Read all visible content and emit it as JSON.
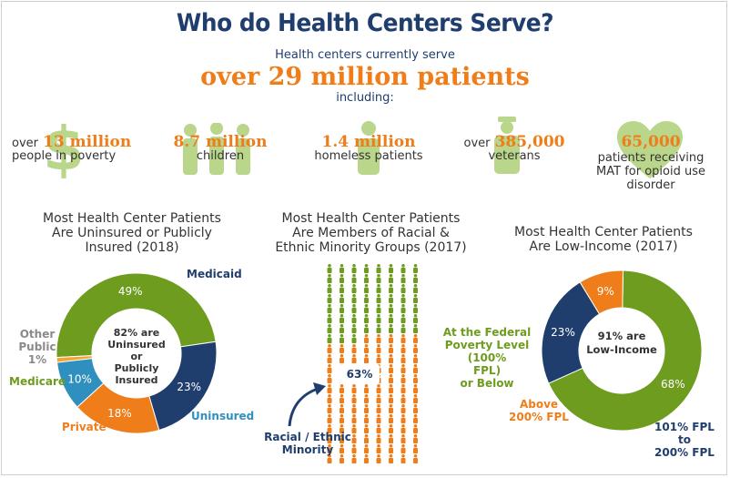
{
  "header": {
    "title": "Who do Health Centers Serve?",
    "line1": "Health centers currently serve",
    "headline": "over 29 million patients",
    "line2": "including:"
  },
  "stats": {
    "poverty": {
      "prefix": "over",
      "number": "13 million",
      "text": "people in poverty",
      "icon": "dollar-icon"
    },
    "children": {
      "number": "8.7 million",
      "text": "children",
      "icon": "children-icon"
    },
    "homeless": {
      "number": "1.4 million",
      "text": "homeless patients",
      "icon": "person-icon"
    },
    "veterans": {
      "prefix": "over",
      "number": "385,000",
      "text": "veterans",
      "icon": "soldier-icon"
    },
    "mat": {
      "number": "65,000",
      "text1": "patients receiving",
      "text2": "MAT for opioid use",
      "text3": "disorder",
      "icon": "heart-icon"
    }
  },
  "insurance_chart": {
    "title1": "Most Health Center Patients",
    "title2": "Are Uninsured or Publicly",
    "title3": "Insured (2018)",
    "center1": "82% are",
    "center2": "Uninsured or",
    "center3": "Publicly",
    "center4": "Insured",
    "labels": {
      "medicaid": "Medicaid",
      "other1": "Other",
      "other2": "Public",
      "other3": "1%",
      "medicare": "Medicare",
      "private": "Private",
      "uninsured": "Uninsured"
    }
  },
  "minority_chart": {
    "title1": "Most Health Center Patients",
    "title2": "Are Members of Racial &",
    "title3": "Ethnic Minority Groups (2017)",
    "value_label": "63%",
    "annot1": "Racial / Ethnic",
    "annot2": "Minority"
  },
  "income_chart": {
    "title1": "Most Health Center Patients",
    "title2": "Are  Low-Income (2017)",
    "center1": "91% are",
    "center2": "Low-Income",
    "labels": {
      "fpl1": "At the Federal",
      "fpl2": "Poverty Level (100%",
      "fpl3": "FPL)",
      "fpl4": "or Below",
      "above1": "Above",
      "above2": "200% FPL",
      "mid1": "101% FPL",
      "mid2": "to",
      "mid3": "200% FPL"
    }
  },
  "chart_data": [
    {
      "type": "pie",
      "title": "Most Health Center Patients Are Uninsured or Publicly Insured (2018)",
      "categories": [
        "Medicaid",
        "Uninsured",
        "Private",
        "Medicare",
        "Other Public"
      ],
      "values": [
        49,
        23,
        18,
        10,
        1
      ],
      "value_labels": [
        "49%",
        "23%",
        "18%",
        "10%",
        ""
      ],
      "colors": [
        "#6d9c1f",
        "#1f3e6e",
        "#ef7d1a",
        "#2f8fbf",
        "#f2a534"
      ]
    },
    {
      "type": "pie",
      "title": "Most Health Center Patients Are Low-Income (2017)",
      "categories": [
        "At the Federal Poverty Level (100% FPL) or Below",
        "101% FPL to 200% FPL",
        "Above 200% FPL"
      ],
      "values": [
        68,
        23,
        9
      ],
      "value_labels": [
        "68%",
        "23%",
        "9%"
      ],
      "colors": [
        "#6d9c1f",
        "#1f3e6e",
        "#ef7d1a"
      ]
    },
    {
      "type": "bar",
      "title": "Most Health Center Patients Are Members of Racial & Ethnic Minority Groups (2017)",
      "categories": [
        "Racial / Ethnic Minority"
      ],
      "values": [
        63
      ],
      "value_labels": [
        "63%"
      ],
      "colors": [
        "#ef7d1a",
        "#6d9c1f"
      ]
    }
  ]
}
